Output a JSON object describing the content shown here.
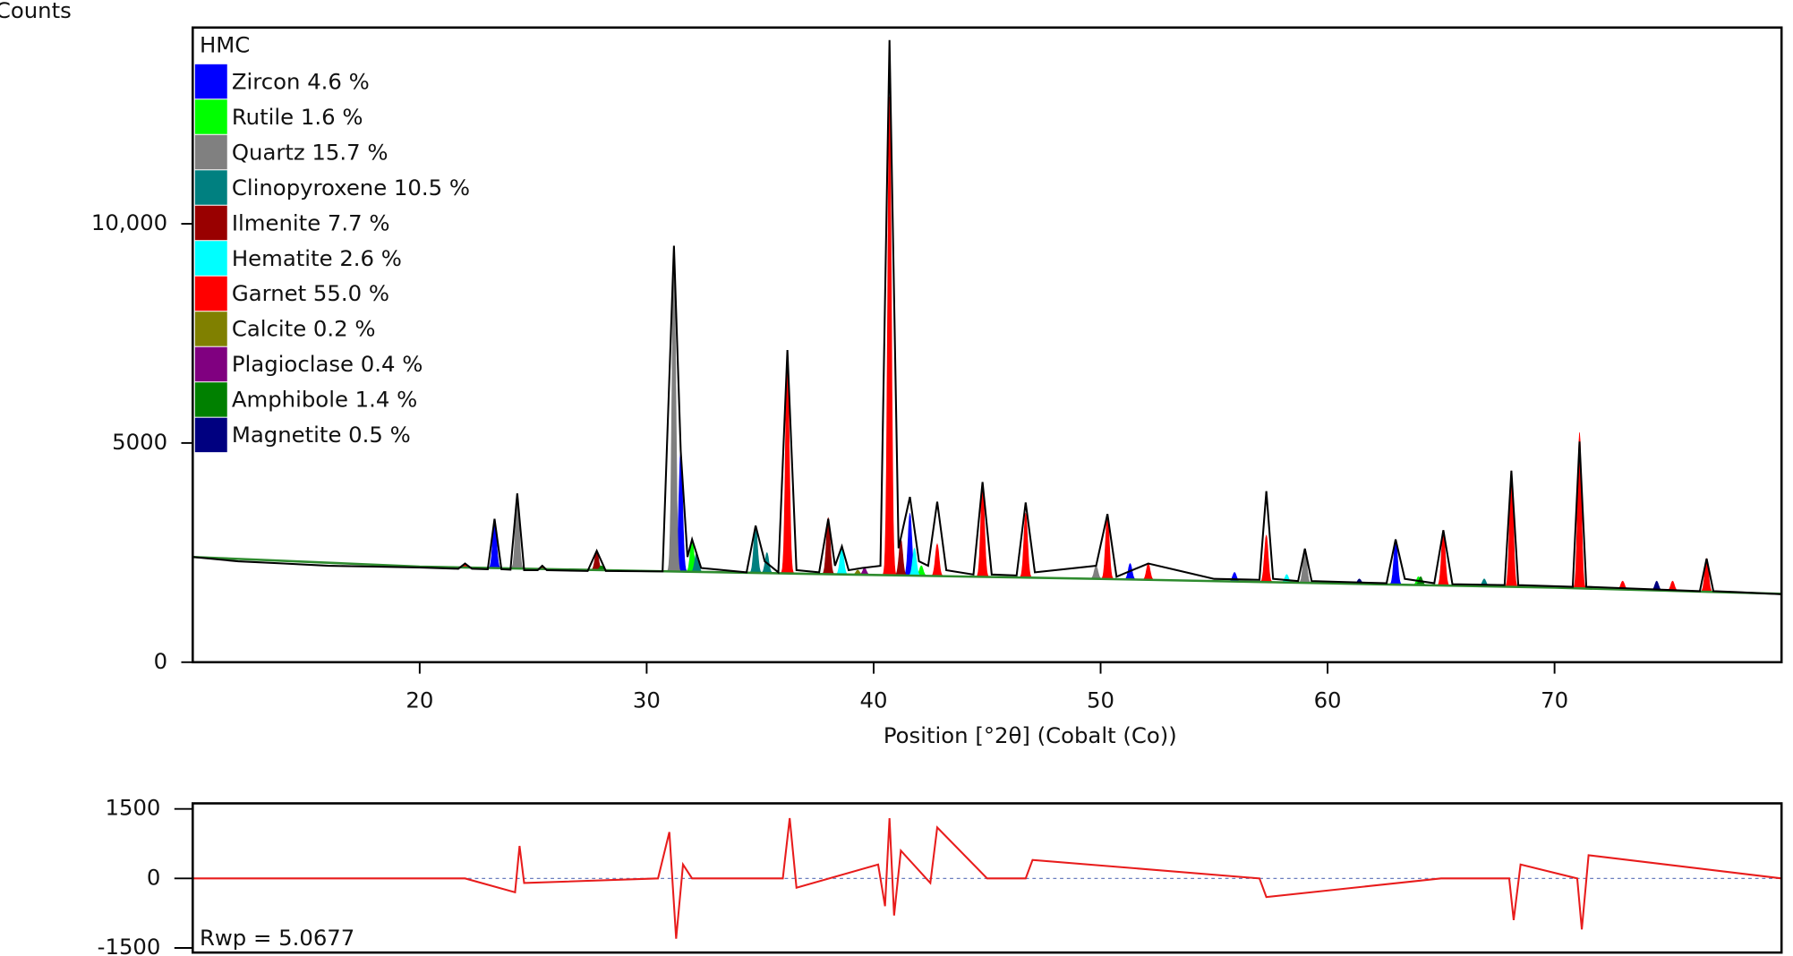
{
  "chart_data": [
    {
      "type": "xrd",
      "y_label": "Counts",
      "x_label": "Position [°2θ] (Cobalt (Co))",
      "legend_title": "HMC",
      "xlim": [
        10,
        80
      ],
      "xticks": [
        20,
        30,
        40,
        50,
        60,
        70
      ],
      "ylim": [
        0,
        14476
      ],
      "yticks": [
        0,
        5000,
        {
          "value": 10000,
          "label": "10,000"
        }
      ],
      "observed_color": "#000000",
      "x": [
        10,
        12,
        14,
        16,
        18,
        20,
        21.7,
        22,
        22.3,
        23,
        23.3,
        23.6,
        24,
        24.3,
        24.6,
        25.2,
        25.4,
        25.6,
        27.4,
        27.8,
        28.2,
        30.7,
        31.2,
        31.5,
        31.8,
        32.0,
        32.4,
        34.4,
        34.8,
        35.2,
        35.8,
        36.2,
        36.6,
        37.6,
        38.0,
        38.3,
        38.6,
        38.9,
        39.5,
        40.3,
        40.7,
        41.1,
        41.6,
        42.0,
        42.4,
        42.8,
        43.2,
        44.4,
        44.8,
        45.2,
        46.3,
        46.7,
        47.1,
        49.8,
        50.3,
        50.7,
        52.1,
        55,
        57.0,
        57.3,
        57.6,
        58.7,
        59.0,
        59.3,
        62.6,
        63.0,
        63.4,
        64.7,
        65.1,
        65.5,
        67.8,
        68.1,
        68.4,
        70.8,
        71.1,
        71.4,
        76.4,
        76.7,
        77.0,
        78,
        80
      ],
      "values": [
        2400,
        2300,
        2250,
        2200,
        2180,
        2160,
        2130,
        2250,
        2130,
        2120,
        3270,
        2120,
        2110,
        3850,
        2100,
        2100,
        2200,
        2100,
        2080,
        2540,
        2080,
        2070,
        9500,
        4820,
        2400,
        2800,
        2150,
        2050,
        3115,
        2300,
        2050,
        7120,
        2100,
        2050,
        3270,
        2200,
        2640,
        2100,
        2150,
        2200,
        14190,
        2600,
        3770,
        2300,
        2200,
        3660,
        2100,
        2000,
        4110,
        2000,
        1980,
        3640,
        2050,
        2200,
        3380,
        1950,
        2250,
        1900,
        1880,
        3900,
        1900,
        1850,
        2590,
        1850,
        1800,
        2800,
        1900,
        1800,
        3010,
        1780,
        1760,
        4370,
        1760,
        1720,
        5030,
        1720,
        1620,
        2360,
        1620,
        1600,
        1550
      ],
      "background": {
        "color": "#2e8b2e",
        "x": [
          10,
          20,
          30,
          40,
          50,
          60,
          70,
          80
        ],
        "values": [
          2400,
          2180,
          2080,
          1990,
          1900,
          1800,
          1700,
          1560
        ]
      },
      "series": [
        {
          "name": "Zircon 4.6 %",
          "color": "#0000ff",
          "x": [
            23.3,
            31.5,
            41.6,
            51.3,
            55.9,
            63.0
          ],
          "values": [
            3270,
            4820,
            3400,
            2250,
            2050,
            2800
          ]
        },
        {
          "name": "Rutile 1.6 %",
          "color": "#00ff00",
          "x": [
            32.0,
            42.1,
            64.0
          ],
          "values": [
            2800,
            2200,
            1950
          ]
        },
        {
          "name": "Quartz 15.7 %",
          "color": "#808080",
          "x": [
            24.3,
            31.2,
            49.8,
            59.0
          ],
          "values": [
            3850,
            9500,
            2200,
            2590
          ]
        },
        {
          "name": "Clinopyroxene 10.5 %",
          "color": "#008080",
          "x": [
            32.2,
            34.8,
            35.3,
            66.9
          ],
          "values": [
            2500,
            3115,
            2500,
            1900
          ]
        },
        {
          "name": "Ilmenite 7.7 %",
          "color": "#990000",
          "x": [
            27.8,
            38.0,
            41.2
          ],
          "values": [
            2540,
            3300,
            2800
          ]
        },
        {
          "name": "Hematite 2.6 %",
          "color": "#00ffff",
          "x": [
            38.6,
            41.8,
            58.2
          ],
          "values": [
            2640,
            2600,
            2000
          ]
        },
        {
          "name": "Garnet 55.0 %",
          "color": "#ff0000",
          "x": [
            22.0,
            25.4,
            36.2,
            40.7,
            42.8,
            44.8,
            46.7,
            50.3,
            52.1,
            57.3,
            65.1,
            68.1,
            71.1,
            73.0,
            75.2,
            76.7
          ],
          "values": [
            2250,
            2200,
            7120,
            12900,
            2700,
            4100,
            3400,
            3380,
            2250,
            2900,
            3010,
            4370,
            5240,
            1850,
            1850,
            2360
          ]
        },
        {
          "name": "Calcite 0.2 %",
          "color": "#808000",
          "x": [
            39.3
          ],
          "values": [
            2100
          ]
        },
        {
          "name": "Plagioclase 0.4 %",
          "color": "#800080",
          "x": [
            39.6
          ],
          "values": [
            2150
          ]
        },
        {
          "name": "Amphibole 1.4 %",
          "color": "#008000",
          "x": [
            28.0,
            64.1
          ],
          "values": [
            2200,
            1950
          ]
        },
        {
          "name": "Magnetite 0.5 %",
          "color": "#000080",
          "x": [
            61.4,
            74.5
          ],
          "values": [
            1900,
            1850
          ]
        }
      ]
    },
    {
      "type": "line",
      "annotation": "Rwp = 5.0677",
      "color": "#e81c1c",
      "xlim": [
        10,
        80
      ],
      "ylim": [
        -1600,
        1620
      ],
      "yticks": [
        -1500,
        0,
        1500
      ],
      "x": [
        10,
        22,
        24.2,
        24.4,
        24.6,
        30.5,
        31,
        31.3,
        31.6,
        32,
        36,
        36.3,
        36.6,
        40.2,
        40.5,
        40.7,
        40.9,
        41.2,
        42.5,
        42.8,
        45,
        46.7,
        47,
        57,
        57.3,
        65,
        68,
        68.2,
        68.5,
        71,
        71.2,
        71.5,
        80
      ],
      "values": [
        0,
        0,
        -300,
        700,
        -100,
        0,
        1000,
        -1300,
        300,
        0,
        0,
        1300,
        -200,
        300,
        -600,
        1300,
        -800,
        600,
        -100,
        1100,
        0,
        0,
        400,
        0,
        -400,
        0,
        0,
        -900,
        300,
        0,
        -1100,
        500,
        0
      ]
    }
  ]
}
